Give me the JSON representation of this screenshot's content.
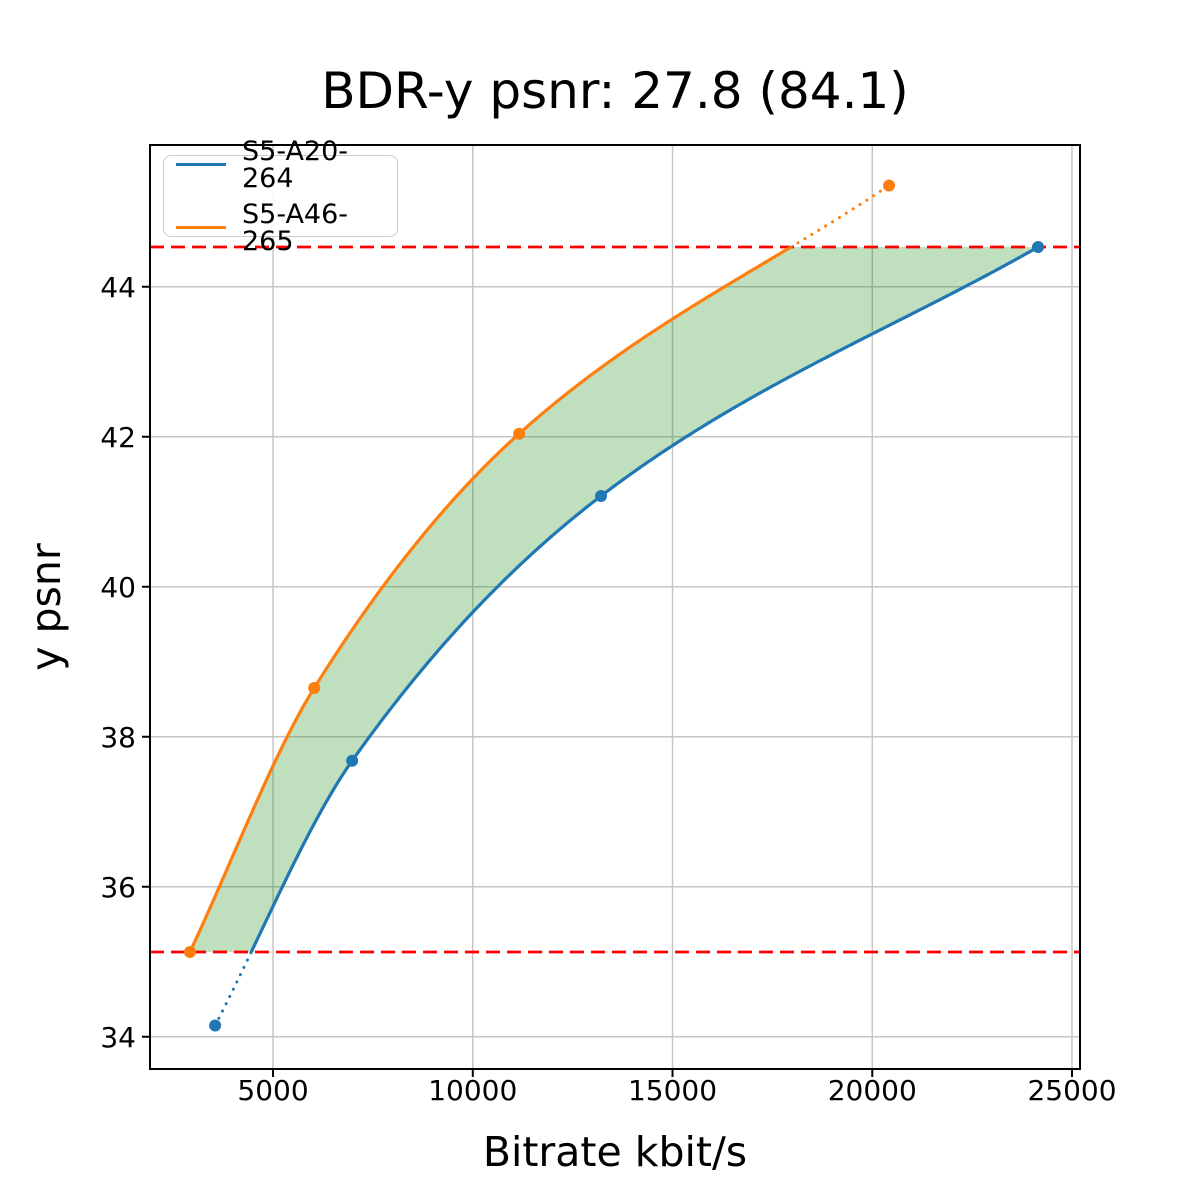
{
  "chart_data": {
    "type": "line",
    "title": "BDR-y psnr: 27.8 (84.1)",
    "xlabel": "Bitrate kbit/s",
    "ylabel": "y psnr",
    "xlim": [
      1920,
      25200
    ],
    "ylim": [
      33.57,
      45.89
    ],
    "xticks": [
      5000,
      10000,
      15000,
      20000,
      25000
    ],
    "yticks": [
      34,
      36,
      38,
      40,
      42,
      44
    ],
    "grid": true,
    "grid_color": "#c6c6c6",
    "legend_position": "upper-left",
    "series": [
      {
        "name": "S5-A20-264",
        "color": "#1f77b4",
        "points": [
          [
            3550,
            34.15
          ],
          [
            6980,
            37.68
          ],
          [
            13210,
            41.21
          ],
          [
            24150,
            44.53
          ]
        ]
      },
      {
        "name": "S5-A46-265",
        "color": "#ff7f0e",
        "points": [
          [
            2920,
            35.13
          ],
          [
            6030,
            38.65
          ],
          [
            11160,
            42.04
          ],
          [
            20420,
            45.35
          ]
        ]
      }
    ],
    "overlap_band": {
      "lower": 35.13,
      "upper": 44.53,
      "line_color": "#ff0000",
      "line_style": "dashed"
    },
    "fill_between": {
      "color": "#008000",
      "opacity": 0.25
    },
    "out_of_overlap_style": "dotted"
  }
}
